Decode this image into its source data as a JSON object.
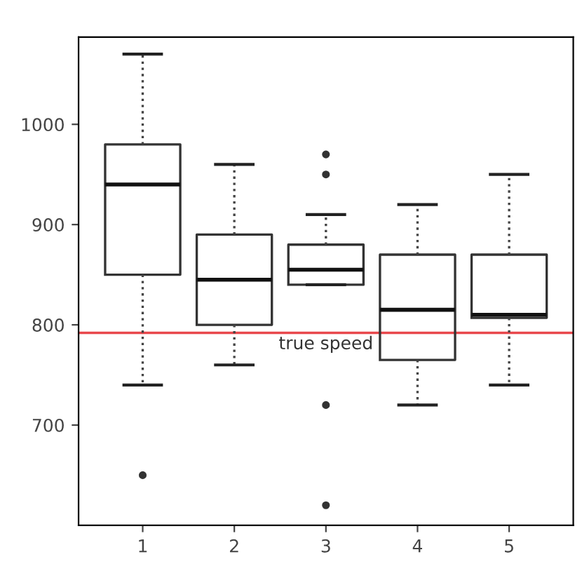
{
  "chart_data": {
    "type": "box",
    "categories": [
      "1",
      "2",
      "3",
      "4",
      "5"
    ],
    "boxes": [
      {
        "low": 740,
        "q1": 850,
        "median": 940,
        "q3": 980,
        "high": 1070,
        "outliers": [
          650
        ]
      },
      {
        "low": 760,
        "q1": 800,
        "median": 845,
        "q3": 890,
        "high": 960
      },
      {
        "low": 840,
        "q1": 840,
        "median": 855,
        "q3": 880,
        "high": 910,
        "outliers": [
          620,
          720,
          950,
          970
        ]
      },
      {
        "low": 720,
        "q1": 765,
        "median": 815,
        "q3": 870,
        "high": 920
      },
      {
        "low": 740,
        "q1": 807,
        "median": 810,
        "q3": 870,
        "high": 950
      }
    ],
    "ylim": [
      600,
      1087
    ],
    "yticks": [
      700,
      800,
      900,
      1000
    ],
    "ref_lines": [
      {
        "axis": "y",
        "value": 792,
        "label": "true speed",
        "color": "#e8474c"
      }
    ],
    "grid": false,
    "legend": false
  }
}
